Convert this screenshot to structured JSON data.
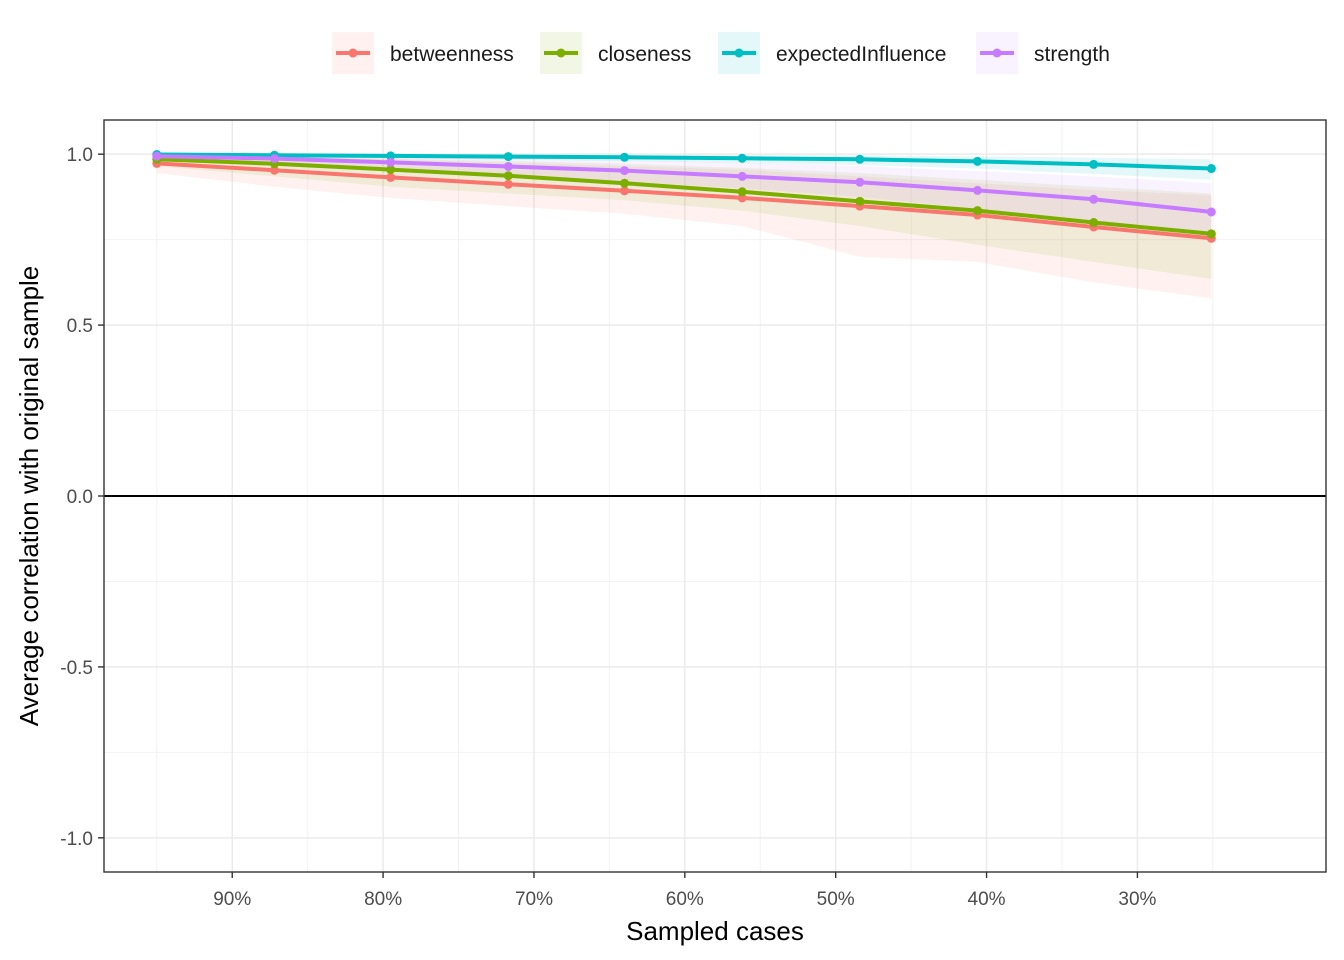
{
  "chart_data": {
    "type": "line",
    "title": "",
    "xlabel": "Sampled cases",
    "ylabel": "Average correlation with original sample",
    "x_reversed": true,
    "xlim": [
      0.985,
      0.175
    ],
    "ylim": [
      -1.1,
      1.1
    ],
    "x_ticks": [
      {
        "value": 0.9,
        "label": "90%"
      },
      {
        "value": 0.8,
        "label": "80%"
      },
      {
        "value": 0.7,
        "label": "70%"
      },
      {
        "value": 0.6,
        "label": "60%"
      },
      {
        "value": 0.5,
        "label": "50%"
      },
      {
        "value": 0.4,
        "label": "40%"
      },
      {
        "value": 0.3,
        "label": "30%"
      }
    ],
    "y_ticks": [
      {
        "value": 1.0,
        "label": "1.0"
      },
      {
        "value": 0.5,
        "label": "0.5"
      },
      {
        "value": 0.0,
        "label": "0.0"
      },
      {
        "value": -0.5,
        "label": "-0.5"
      },
      {
        "value": -1.0,
        "label": "-1.0"
      }
    ],
    "reference_line": 0,
    "grid": true,
    "legend_position": "top",
    "x": [
      0.95,
      0.872,
      0.795,
      0.717,
      0.64,
      0.562,
      0.484,
      0.406,
      0.329,
      0.251
    ],
    "series": [
      {
        "name": "betweenness",
        "color": "#F8766D",
        "values": [
          0.973,
          0.953,
          0.932,
          0.912,
          0.893,
          0.872,
          0.848,
          0.822,
          0.787,
          0.754
        ],
        "lower": [
          0.945,
          0.905,
          0.872,
          0.848,
          0.826,
          0.79,
          0.7,
          0.685,
          0.625,
          0.578
        ],
        "upper": [
          0.995,
          0.99,
          0.985,
          0.975,
          0.965,
          0.955,
          0.935,
          0.915,
          0.895,
          0.88
        ]
      },
      {
        "name": "closeness",
        "color": "#7CAE00",
        "values": [
          0.985,
          0.972,
          0.955,
          0.937,
          0.915,
          0.89,
          0.862,
          0.835,
          0.8,
          0.767
        ],
        "lower": [
          0.965,
          0.935,
          0.905,
          0.885,
          0.865,
          0.835,
          0.79,
          0.735,
          0.685,
          0.635
        ],
        "upper": [
          0.998,
          0.994,
          0.988,
          0.98,
          0.972,
          0.96,
          0.945,
          0.925,
          0.905,
          0.885
        ]
      },
      {
        "name": "expectedInfluence",
        "color": "#00BFC4",
        "values": [
          0.999,
          0.997,
          0.995,
          0.993,
          0.991,
          0.988,
          0.985,
          0.979,
          0.97,
          0.958
        ],
        "lower": [
          0.996,
          0.992,
          0.988,
          0.984,
          0.98,
          0.974,
          0.968,
          0.958,
          0.942,
          0.925
        ],
        "upper": [
          1.0,
          1.0,
          0.999,
          0.999,
          0.998,
          0.997,
          0.996,
          0.994,
          0.99,
          0.985
        ]
      },
      {
        "name": "strength",
        "color": "#C77CFF",
        "values": [
          0.994,
          0.987,
          0.976,
          0.964,
          0.952,
          0.935,
          0.918,
          0.894,
          0.868,
          0.831
        ],
        "lower": [
          0.985,
          0.97,
          0.955,
          0.94,
          0.92,
          0.9,
          0.875,
          0.84,
          0.8,
          0.75
        ],
        "upper": [
          0.999,
          0.997,
          0.993,
          0.988,
          0.982,
          0.975,
          0.965,
          0.95,
          0.935,
          0.915
        ]
      }
    ]
  }
}
